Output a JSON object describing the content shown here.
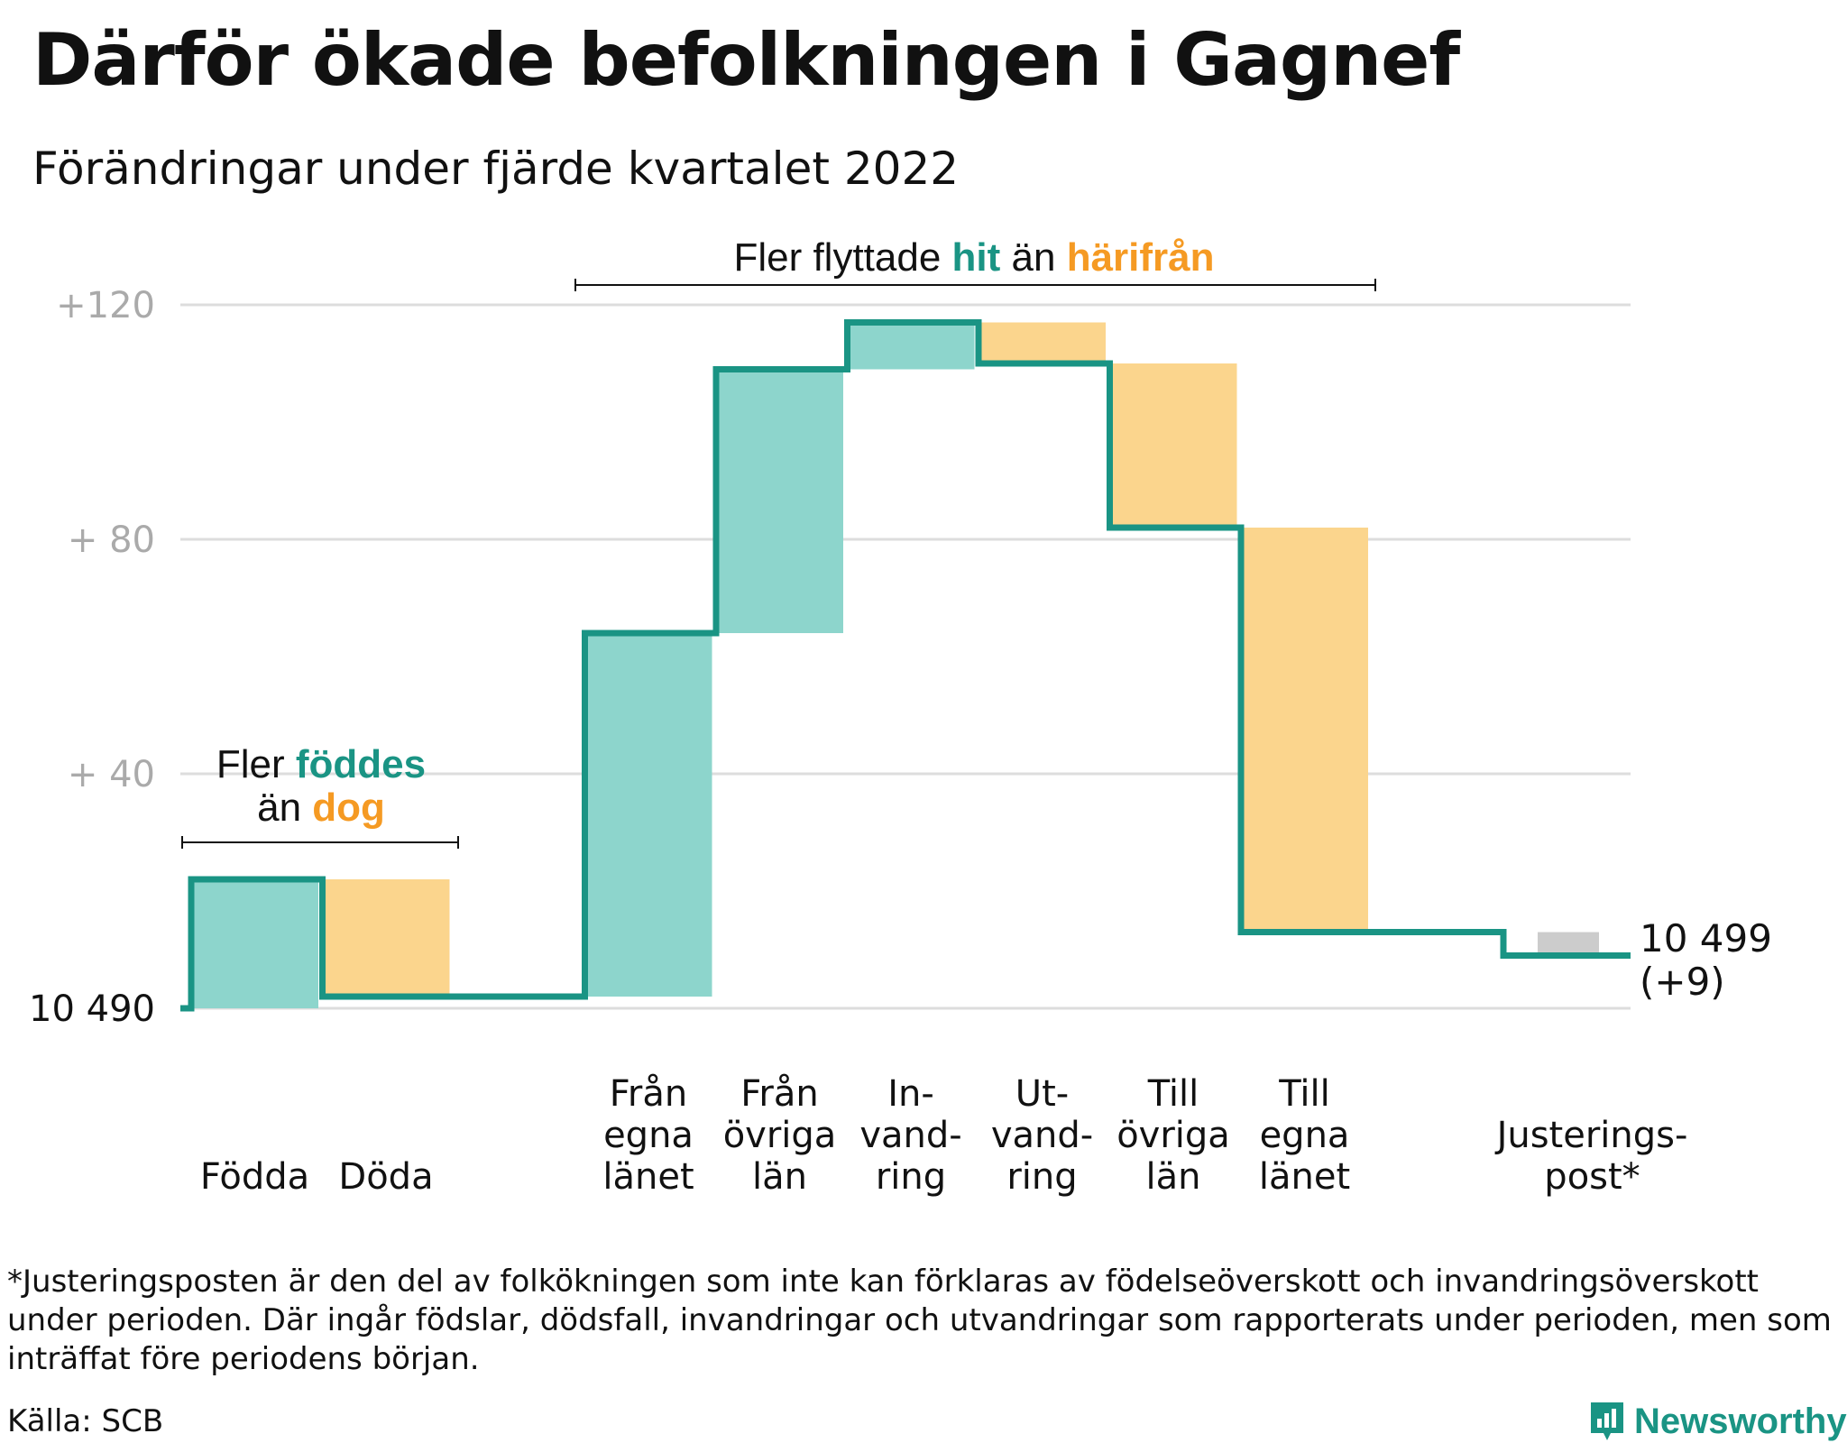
{
  "title": "Därför ökade befolkningen i Gagnef",
  "subtitle": "Förändringar under fjärde kvartalet 2022",
  "annotations": {
    "birth": {
      "line1_a": "Fler ",
      "line1_b": "föddes",
      "line2_a": "än ",
      "line2_b": "dog"
    },
    "migration": {
      "a": "Fler flyttade ",
      "b": "hit",
      "c": " än ",
      "d": "härifrån"
    }
  },
  "end_label": {
    "value": "10 499",
    "change": "(+9)"
  },
  "footnote": "*Justeringsposten är den del av folkökningen som inte kan förklaras av födelseöverskott och invandringsöverskott under perioden. Där ingår födslar, dödsfall, invandringar och utvandringar som rapporterats under perioden, men som inträffat före periodens början.",
  "source": "Källa: SCB",
  "brand": "Newsworthy",
  "colors": {
    "increase": "#8dd5cc",
    "decrease": "#fbd58d",
    "adjustment": "#cccccc",
    "line": "#1a9484",
    "teal_text": "#1a9484",
    "orange_text": "#f59a23",
    "grid": "#dddddd"
  },
  "chart_data": {
    "type": "waterfall",
    "base_value": 10490,
    "base_label": "10 490",
    "y_ticks": [
      {
        "value": 40,
        "label": "+ 40"
      },
      {
        "value": 80,
        "label": "+ 80"
      },
      {
        "value": 120,
        "label": "+120"
      }
    ],
    "ylim": [
      0,
      120
    ],
    "grid": true,
    "steps": [
      {
        "label": [
          "Födda"
        ],
        "start": 0,
        "end": 22,
        "kind": "increase"
      },
      {
        "label": [
          "Döda"
        ],
        "start": 22,
        "end": 2,
        "kind": "decrease"
      },
      {
        "label": [
          "Från",
          "egna",
          "länet"
        ],
        "start": 2,
        "end": 64,
        "kind": "increase"
      },
      {
        "label": [
          "Från",
          "övriga",
          "län"
        ],
        "start": 64,
        "end": 109,
        "kind": "increase"
      },
      {
        "label": [
          "In-",
          "vand-",
          "ring"
        ],
        "start": 109,
        "end": 117,
        "kind": "increase"
      },
      {
        "label": [
          "Ut-",
          "vand-",
          "ring"
        ],
        "start": 117,
        "end": 110,
        "kind": "decrease"
      },
      {
        "label": [
          "Till",
          "övriga",
          "län"
        ],
        "start": 110,
        "end": 82,
        "kind": "decrease"
      },
      {
        "label": [
          "Till",
          "egna",
          "länet"
        ],
        "start": 82,
        "end": 13,
        "kind": "decrease"
      },
      {
        "label": [
          "Justerings-",
          "post*"
        ],
        "start": 13,
        "end": 9,
        "kind": "adjustment"
      }
    ],
    "end_value": 10499,
    "change": 9
  }
}
